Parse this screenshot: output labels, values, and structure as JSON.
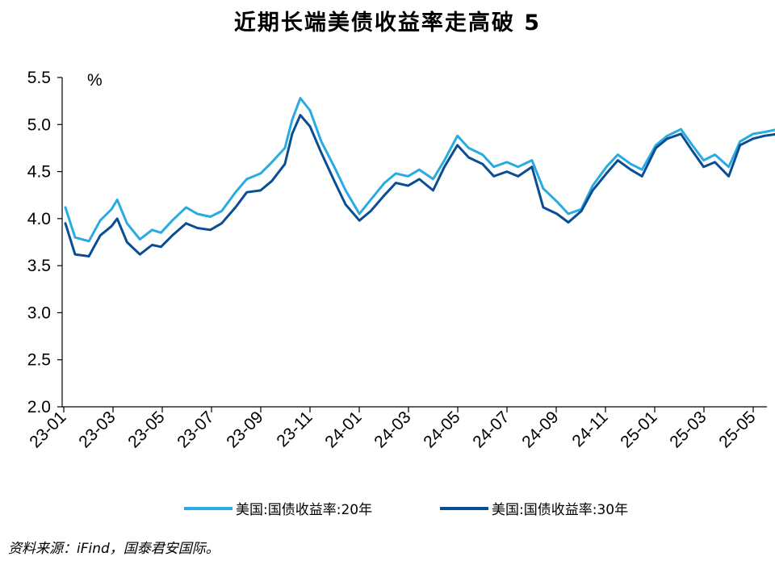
{
  "header": {
    "title": "近期长端美债收益率走高破 5"
  },
  "footer": {
    "source": "资料来源：iFind，国泰君安国际。"
  },
  "colors": {
    "series_20y": "#29abe2",
    "series_30y": "#0a4d92",
    "axis": "#000000"
  },
  "chart_data": {
    "type": "line",
    "title": "近期长端美债收益率走高破 5",
    "ylabel": "%",
    "ylim": [
      2.0,
      5.5
    ],
    "yticks": [
      "2.0",
      "2.5",
      "3.0",
      "3.5",
      "4.0",
      "4.5",
      "5.0",
      "5.5"
    ],
    "xticks": [
      "23-01",
      "23-03",
      "23-05",
      "23-07",
      "23-09",
      "23-11",
      "24-01",
      "24-03",
      "24-05",
      "24-07",
      "24-09",
      "24-11",
      "25-01",
      "25-03",
      "25-05"
    ],
    "grid": false,
    "legend_position": "bottom",
    "series": [
      {
        "name": "美国:国债收益率:20年",
        "x": [
          "2023-01-03",
          "2023-01-15",
          "2023-02-01",
          "2023-02-15",
          "2023-03-01",
          "2023-03-08",
          "2023-03-20",
          "2023-04-05",
          "2023-04-20",
          "2023-05-01",
          "2023-05-15",
          "2023-06-01",
          "2023-06-15",
          "2023-07-01",
          "2023-07-15",
          "2023-08-01",
          "2023-08-15",
          "2023-09-01",
          "2023-09-15",
          "2023-10-01",
          "2023-10-10",
          "2023-10-20",
          "2023-11-01",
          "2023-11-15",
          "2023-12-01",
          "2023-12-15",
          "2024-01-01",
          "2024-01-15",
          "2024-02-01",
          "2024-02-15",
          "2024-03-01",
          "2024-03-15",
          "2024-04-01",
          "2024-04-15",
          "2024-05-01",
          "2024-05-15",
          "2024-06-01",
          "2024-06-15",
          "2024-07-01",
          "2024-07-15",
          "2024-08-01",
          "2024-08-15",
          "2024-09-01",
          "2024-09-15",
          "2024-10-01",
          "2024-10-15",
          "2024-11-01",
          "2024-11-15",
          "2024-12-01",
          "2024-12-15",
          "2025-01-01",
          "2025-01-15",
          "2025-02-01",
          "2025-02-15",
          "2025-03-01",
          "2025-03-15",
          "2025-04-01",
          "2025-04-15",
          "2025-05-01",
          "2025-05-15",
          "2025-06-01",
          "2025-06-10"
        ],
        "values": [
          4.12,
          3.8,
          3.76,
          3.98,
          4.1,
          4.2,
          3.95,
          3.78,
          3.88,
          3.85,
          3.98,
          4.12,
          4.05,
          4.02,
          4.08,
          4.28,
          4.42,
          4.48,
          4.6,
          4.75,
          5.05,
          5.28,
          5.15,
          4.82,
          4.55,
          4.3,
          4.05,
          4.2,
          4.38,
          4.48,
          4.45,
          4.52,
          4.42,
          4.62,
          4.88,
          4.75,
          4.68,
          4.55,
          4.6,
          4.55,
          4.62,
          4.32,
          4.18,
          4.05,
          4.1,
          4.35,
          4.55,
          4.68,
          4.58,
          4.52,
          4.78,
          4.88,
          4.95,
          4.78,
          4.62,
          4.68,
          4.55,
          4.82,
          4.9,
          4.92,
          4.95,
          5.02
        ]
      },
      {
        "name": "美国:国债收益率:30年",
        "x": [
          "2023-01-03",
          "2023-01-15",
          "2023-02-01",
          "2023-02-15",
          "2023-03-01",
          "2023-03-08",
          "2023-03-20",
          "2023-04-05",
          "2023-04-20",
          "2023-05-01",
          "2023-05-15",
          "2023-06-01",
          "2023-06-15",
          "2023-07-01",
          "2023-07-15",
          "2023-08-01",
          "2023-08-15",
          "2023-09-01",
          "2023-09-15",
          "2023-10-01",
          "2023-10-10",
          "2023-10-20",
          "2023-11-01",
          "2023-11-15",
          "2023-12-01",
          "2023-12-15",
          "2024-01-01",
          "2024-01-15",
          "2024-02-01",
          "2024-02-15",
          "2024-03-01",
          "2024-03-15",
          "2024-04-01",
          "2024-04-15",
          "2024-05-01",
          "2024-05-15",
          "2024-06-01",
          "2024-06-15",
          "2024-07-01",
          "2024-07-15",
          "2024-08-01",
          "2024-08-15",
          "2024-09-01",
          "2024-09-15",
          "2024-10-01",
          "2024-10-15",
          "2024-11-01",
          "2024-11-15",
          "2024-12-01",
          "2024-12-15",
          "2025-01-01",
          "2025-01-15",
          "2025-02-01",
          "2025-02-15",
          "2025-03-01",
          "2025-03-15",
          "2025-04-01",
          "2025-04-15",
          "2025-05-01",
          "2025-05-15",
          "2025-06-01",
          "2025-06-10"
        ],
        "values": [
          3.95,
          3.62,
          3.6,
          3.82,
          3.92,
          4.0,
          3.75,
          3.62,
          3.72,
          3.7,
          3.82,
          3.95,
          3.9,
          3.88,
          3.95,
          4.12,
          4.28,
          4.3,
          4.4,
          4.58,
          4.9,
          5.1,
          4.98,
          4.7,
          4.4,
          4.15,
          3.98,
          4.08,
          4.25,
          4.38,
          4.35,
          4.42,
          4.3,
          4.55,
          4.78,
          4.65,
          4.58,
          4.45,
          4.5,
          4.45,
          4.55,
          4.12,
          4.05,
          3.96,
          4.08,
          4.3,
          4.48,
          4.62,
          4.52,
          4.45,
          4.75,
          4.85,
          4.9,
          4.72,
          4.55,
          4.6,
          4.45,
          4.78,
          4.85,
          4.88,
          4.9,
          4.98
        ]
      }
    ]
  }
}
